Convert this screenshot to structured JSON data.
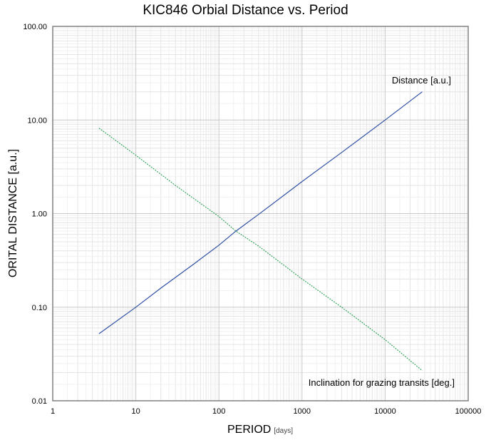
{
  "chart_data": {
    "type": "line",
    "title": "KIC846 Orbial Distance vs. Period",
    "xlabel": "PERIOD",
    "xlabel_unit": "[days]",
    "ylabel": "ORITAL DISTANCE [a.u.]",
    "x_scale": "log",
    "y_scale": "log",
    "xlim": [
      1,
      100000
    ],
    "ylim": [
      0.01,
      100
    ],
    "x_ticks": [
      "1",
      "10",
      "100",
      "1000",
      "10000",
      "100000"
    ],
    "y_ticks": [
      "0.01",
      "0.10",
      "1.00",
      "10.00",
      "100.00"
    ],
    "grid": true,
    "series": [
      {
        "name": "Distance [a.u.]",
        "color": "#2e4fa3",
        "style": "solid",
        "x": [
          3.6,
          10,
          20,
          50,
          100,
          160,
          300,
          1000,
          3000,
          10000,
          28000
        ],
        "y": [
          0.052,
          0.1,
          0.16,
          0.29,
          0.46,
          0.65,
          0.98,
          2.2,
          4.5,
          10.0,
          20.0
        ]
      },
      {
        "name": "Inclination for grazing transits [deg.]",
        "color": "#2aa055",
        "style": "dotted",
        "x": [
          3.6,
          10,
          30,
          100,
          160,
          300,
          1000,
          3000,
          10000,
          28000
        ],
        "y": [
          8.2,
          4.2,
          2.0,
          0.93,
          0.65,
          0.45,
          0.2,
          0.1,
          0.045,
          0.021
        ]
      }
    ]
  }
}
